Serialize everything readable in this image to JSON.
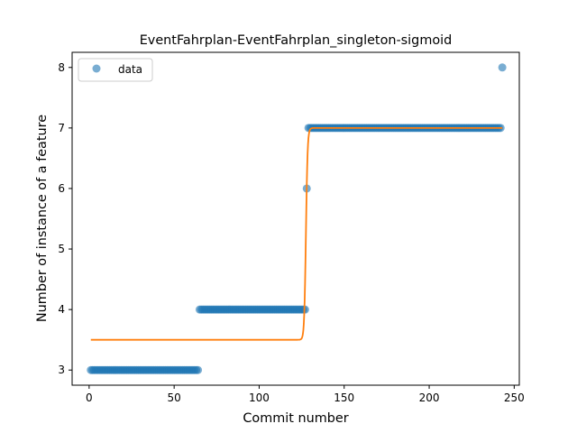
{
  "chart_data": {
    "type": "scatter",
    "title": "EventFahrplan-EventFahrplan_singleton-sigmoid",
    "xlabel": "Commit number",
    "ylabel": "Number of instance of a feature",
    "xlim": [
      -10,
      253
    ],
    "ylim": [
      2.75,
      8.25
    ],
    "xticks": [
      0,
      50,
      100,
      150,
      200,
      250
    ],
    "yticks": [
      3,
      4,
      5,
      6,
      7,
      8
    ],
    "grid": false,
    "legend": {
      "position": "upper-left",
      "entries": [
        "data"
      ]
    },
    "colors": {
      "data": "#1f77b4",
      "fit": "#ff7f0e"
    },
    "series": [
      {
        "name": "data",
        "kind": "scatter",
        "segments": [
          {
            "x_start": 1,
            "x_end": 64,
            "y": 3
          },
          {
            "x_start": 65,
            "x_end": 127,
            "y": 4
          },
          {
            "x_start": 128,
            "x_end": 128,
            "y": 6
          },
          {
            "x_start": 129,
            "x_end": 242,
            "y": 7
          },
          {
            "x_start": 243,
            "x_end": 243,
            "y": 8
          }
        ]
      },
      {
        "kind": "line",
        "model": "sigmoid",
        "params": {
          "low": 3.5,
          "high": 7.0,
          "midpoint": 127.5,
          "steepness": 2.0
        },
        "x_range": [
          1,
          243
        ]
      }
    ]
  }
}
